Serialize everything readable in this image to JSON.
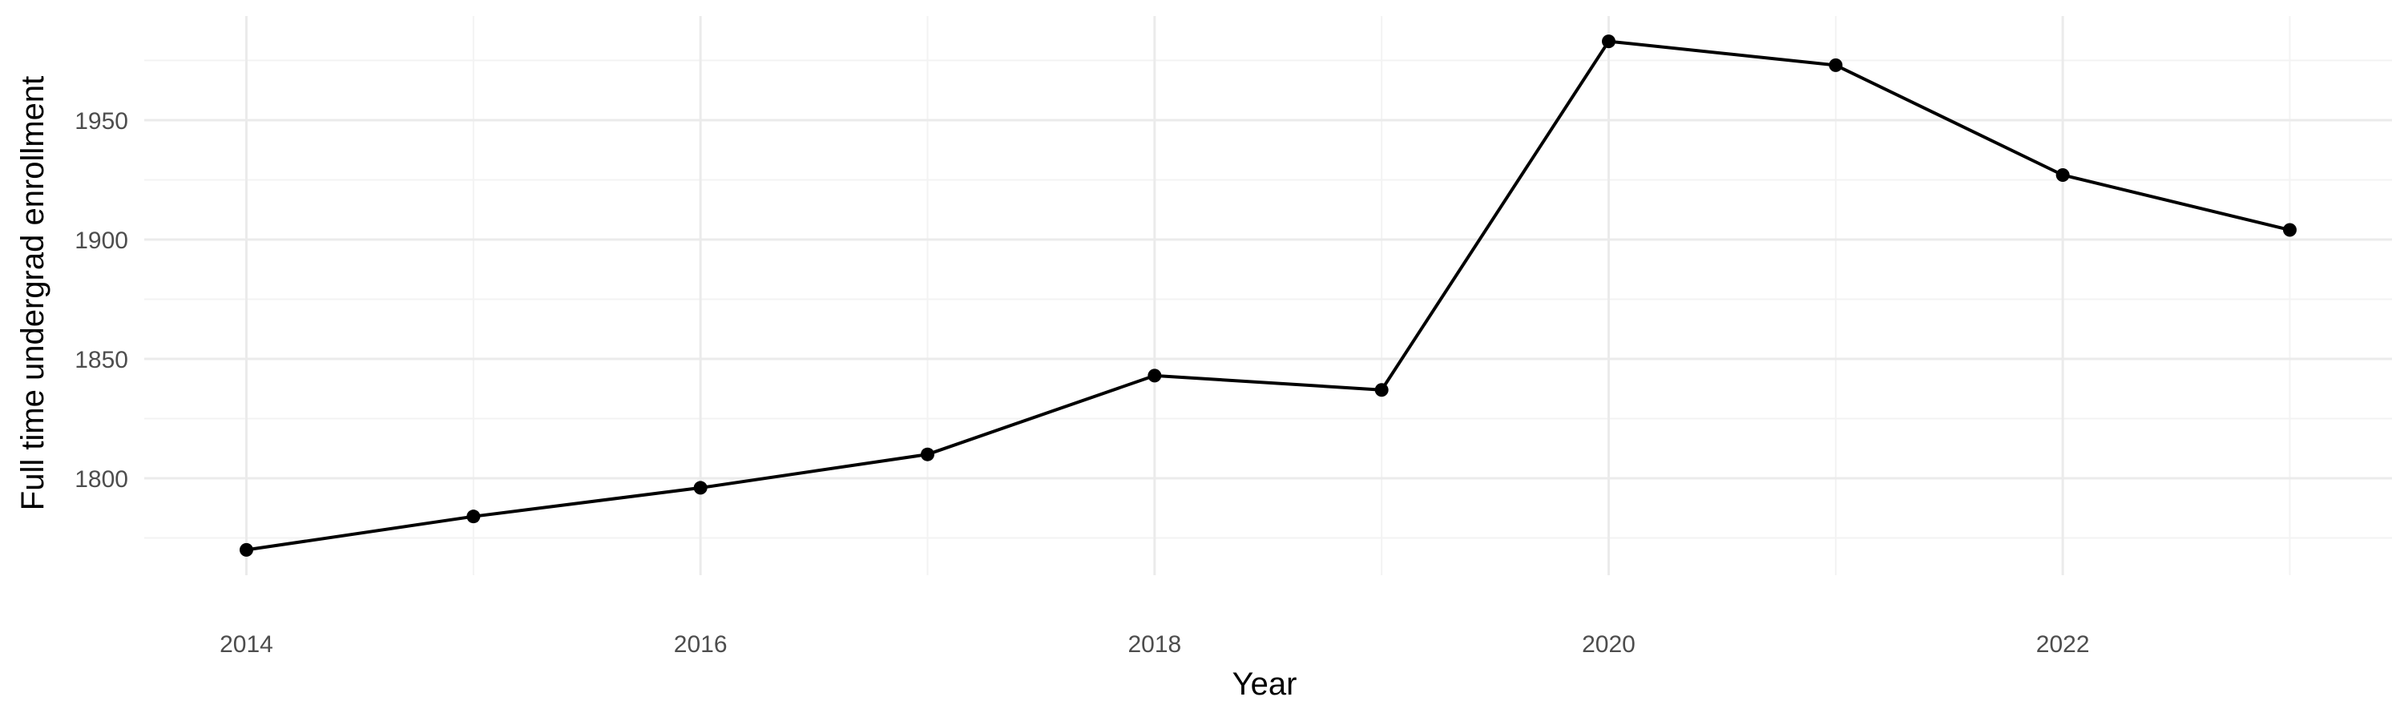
{
  "chart_data": {
    "type": "line",
    "title": "",
    "xlabel": "Year",
    "ylabel": "Full time undergrad enrollment",
    "x": [
      2014,
      2015,
      2016,
      2017,
      2018,
      2019,
      2020,
      2021,
      2022,
      2023
    ],
    "series": [
      {
        "values": [
          1770,
          1784,
          1796,
          1810,
          1843,
          1837,
          1983,
          1973,
          1927,
          1904
        ],
        "color": "#000000"
      }
    ],
    "xlim": [
      2013.55,
      2023.45
    ],
    "ylim": [
      1759.4,
      1993.6
    ],
    "x_ticks": [
      2014,
      2016,
      2018,
      2020,
      2022
    ],
    "x_tick_labels": [
      "2014",
      "2016",
      "2018",
      "2020",
      "2022"
    ],
    "y_ticks": [
      1800,
      1850,
      1900,
      1950
    ],
    "y_tick_labels": [
      "1800",
      "1850",
      "1900",
      "1950"
    ],
    "x_minor_ticks": [
      2015,
      2017,
      2019,
      2021,
      2023
    ],
    "y_minor_ticks": [
      1775,
      1825,
      1875,
      1925,
      1975
    ],
    "grid": true,
    "legend": "none",
    "colors": {
      "background": "#ffffff",
      "grid_major": "#ebebeb",
      "grid_minor": "#f3f3f3",
      "line": "#000000",
      "tick_text": "#4d4d4d"
    }
  }
}
